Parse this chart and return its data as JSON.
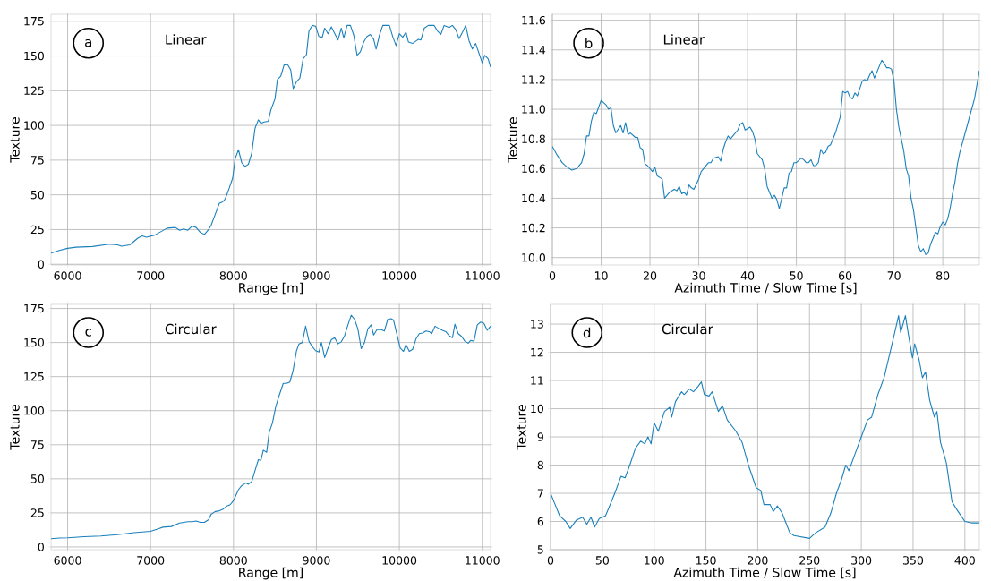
{
  "chart_data": [
    {
      "type": "line",
      "title": "Linear",
      "xlabel": "Range [m]",
      "ylabel": "Texture",
      "annotations": [
        "a"
      ],
      "color": "#1a80bb",
      "grid": true,
      "xlim": [
        5800,
        11100
      ],
      "ylim": [
        -0.5,
        180
      ],
      "xticks": [
        6000,
        7000,
        8000,
        9000,
        10000,
        11000
      ],
      "yticks": [
        0,
        25,
        50,
        75,
        100,
        125,
        150,
        175
      ],
      "x": [
        5800,
        5900,
        6000,
        6100,
        6300,
        6500,
        6600,
        6650,
        6750,
        6850,
        6900,
        6950,
        7050,
        7200,
        7300,
        7350,
        7400,
        7450,
        7500,
        7550,
        7600,
        7650,
        7700,
        7730,
        7780,
        7830,
        7870,
        7900,
        7950,
        7990,
        8020,
        8060,
        8100,
        8140,
        8180,
        8220,
        8260,
        8300,
        8330,
        8370,
        8420,
        8450,
        8500,
        8530,
        8570,
        8610,
        8650,
        8690,
        8720,
        8760,
        8800,
        8840,
        8880,
        8910,
        8950,
        8990,
        9030,
        9070,
        9100,
        9140,
        9180,
        9260,
        9300,
        9330,
        9370,
        9410,
        9450,
        9490,
        9530,
        9570,
        9610,
        9650,
        9690,
        9720,
        9760,
        9800,
        9880,
        9920,
        9960,
        10000,
        10040,
        10080,
        10110,
        10160,
        10230,
        10260,
        10300,
        10350,
        10420,
        10460,
        10500,
        10540,
        10600,
        10640,
        10680,
        10720,
        10760,
        10800,
        10840,
        10880,
        10920,
        10960,
        11000,
        11030,
        11070,
        11100
      ],
      "values": [
        8,
        10,
        11.5,
        12.3,
        12.8,
        14.5,
        14,
        13,
        14,
        19,
        20.5,
        19.5,
        21,
        26,
        26.5,
        24.5,
        25.5,
        24.5,
        27.5,
        26.5,
        23,
        21.5,
        25,
        28,
        36,
        44,
        45,
        47,
        55,
        62,
        76,
        82.5,
        73,
        70.5,
        72,
        80,
        98,
        104,
        101.5,
        102.5,
        103,
        111,
        119,
        133,
        135.5,
        143.5,
        144,
        140,
        126.5,
        131.5,
        134,
        148,
        151,
        168,
        172,
        171.5,
        164,
        163.5,
        170,
        166,
        171,
        161.5,
        170,
        163,
        172,
        172,
        165,
        150.5,
        153,
        160,
        164,
        165.5,
        162,
        155,
        165,
        172,
        172,
        164,
        157.5,
        166,
        163.5,
        167,
        160,
        159,
        162,
        161.5,
        170,
        172,
        172,
        168,
        165.5,
        172,
        170.5,
        172,
        169,
        162.5,
        167,
        172,
        161,
        155,
        159,
        152,
        145,
        150.5,
        148,
        142
      ]
    },
    {
      "type": "line",
      "title": "Linear",
      "xlabel": "Azimuth Time / Slow Time [s]",
      "ylabel": "Texture",
      "annotations": [
        "b"
      ],
      "color": "#1a80bb",
      "grid": true,
      "xlim": [
        0,
        87.5
      ],
      "ylim": [
        9.95,
        11.64
      ],
      "xticks": [
        0,
        10,
        20,
        30,
        40,
        50,
        60,
        70,
        80
      ],
      "yticks": [
        {
          "value": 10,
          "label": "10.0"
        },
        10.2,
        10.4,
        10.6,
        10.8,
        {
          "value": 11,
          "label": "11.0"
        },
        11.2,
        11.4,
        11.6
      ],
      "x": [
        0,
        1,
        2,
        3,
        4,
        5,
        6,
        6.5,
        7,
        7.5,
        8,
        8.5,
        9,
        10,
        11,
        11.5,
        12,
        12.5,
        13,
        14,
        14.5,
        15,
        15.5,
        16,
        17,
        17.5,
        18,
        18.5,
        19,
        19.5,
        20.5,
        21,
        21.5,
        22.5,
        23,
        24,
        25,
        25.5,
        26,
        26.5,
        27,
        27.5,
        28,
        28.5,
        29,
        30,
        30.5,
        31,
        32,
        32.5,
        33,
        34,
        34.5,
        35,
        35.5,
        36,
        36.5,
        37,
        38,
        38.5,
        39,
        39.5,
        40.5,
        41,
        41.5,
        42,
        43,
        43.5,
        44,
        45,
        45.5,
        46,
        46.5,
        47.5,
        48,
        48.5,
        49,
        49.5,
        50,
        51,
        51.5,
        52,
        52.5,
        53,
        53.5,
        54,
        54.5,
        55,
        55.5,
        56,
        56.5,
        57,
        58,
        59,
        59.5,
        60,
        60.5,
        61,
        61.5,
        62,
        62.5,
        63.5,
        64,
        64.5,
        65,
        65.5,
        66,
        67.5,
        68,
        68.5,
        69,
        69.5,
        70,
        70.5,
        71,
        72,
        72.5,
        73,
        73.5,
        74,
        75,
        75.5,
        76,
        76.5,
        77,
        77.5,
        78,
        78.5,
        79,
        79.5,
        80,
        80.5,
        81,
        81.5,
        82,
        82.5,
        83,
        83.5,
        85,
        86.5,
        87.5
      ],
      "values": [
        10.75,
        10.69,
        10.64,
        10.61,
        10.59,
        10.6,
        10.64,
        10.7,
        10.82,
        10.82,
        10.92,
        10.98,
        10.97,
        11.06,
        11.03,
        11.0,
        11.01,
        10.89,
        10.84,
        10.89,
        10.84,
        10.91,
        10.83,
        10.84,
        10.81,
        10.81,
        10.74,
        10.73,
        10.63,
        10.62,
        10.58,
        10.61,
        10.55,
        10.53,
        10.4,
        10.44,
        10.46,
        10.45,
        10.48,
        10.43,
        10.44,
        10.42,
        10.49,
        10.47,
        10.46,
        10.53,
        10.58,
        10.6,
        10.64,
        10.64,
        10.67,
        10.68,
        10.65,
        10.73,
        10.78,
        10.82,
        10.8,
        10.82,
        10.86,
        10.9,
        10.91,
        10.86,
        10.88,
        10.85,
        10.8,
        10.7,
        10.66,
        10.6,
        10.48,
        10.4,
        10.42,
        10.39,
        10.33,
        10.47,
        10.47,
        10.57,
        10.58,
        10.64,
        10.64,
        10.67,
        10.66,
        10.64,
        10.64,
        10.66,
        10.62,
        10.62,
        10.64,
        10.73,
        10.7,
        10.71,
        10.75,
        10.76,
        10.84,
        10.95,
        11.12,
        11.11,
        11.12,
        11.08,
        11.07,
        11.11,
        11.09,
        11.19,
        11.2,
        11.19,
        11.23,
        11.26,
        11.21,
        11.33,
        11.31,
        11.28,
        11.28,
        11.27,
        11.19,
        11.0,
        10.88,
        10.72,
        10.6,
        10.55,
        10.4,
        10.32,
        10.08,
        10.04,
        10.06,
        10.02,
        10.03,
        10.09,
        10.13,
        10.17,
        10.16,
        10.21,
        10.24,
        10.22,
        10.26,
        10.33,
        10.43,
        10.51,
        10.63,
        10.71,
        10.89,
        11.07,
        11.26
      ]
    },
    {
      "type": "line",
      "title": "Circular",
      "xlabel": "Range [m]",
      "ylabel": "Texture",
      "annotations": [
        "c"
      ],
      "color": "#1a80bb",
      "grid": true,
      "xlim": [
        5800,
        11100
      ],
      "ylim": [
        -2,
        178
      ],
      "xticks": [
        6000,
        7000,
        8000,
        9000,
        10000,
        11000
      ],
      "yticks": [
        0,
        25,
        50,
        75,
        100,
        125,
        150,
        175
      ],
      "x": [
        5800,
        5900,
        6000,
        6200,
        6400,
        6600,
        6800,
        7000,
        7050,
        7100,
        7150,
        7250,
        7350,
        7450,
        7500,
        7550,
        7600,
        7650,
        7700,
        7730,
        7780,
        7830,
        7870,
        7920,
        7960,
        8000,
        8060,
        8100,
        8150,
        8180,
        8220,
        8260,
        8300,
        8330,
        8360,
        8400,
        8430,
        8470,
        8510,
        8550,
        8600,
        8640,
        8680,
        8720,
        8760,
        8790,
        8830,
        8870,
        8910,
        8950,
        8990,
        9030,
        9060,
        9100,
        9140,
        9180,
        9220,
        9260,
        9300,
        9340,
        9380,
        9420,
        9460,
        9500,
        9540,
        9580,
        9620,
        9660,
        9690,
        9730,
        9780,
        9820,
        9860,
        9900,
        9930,
        9970,
        10010,
        10050,
        10080,
        10120,
        10160,
        10200,
        10240,
        10280,
        10320,
        10360,
        10390,
        10430,
        10470,
        10520,
        10560,
        10600,
        10640,
        10670,
        10710,
        10750,
        10790,
        10830,
        10860,
        10900,
        10940,
        10980,
        11020,
        11060,
        11100
      ],
      "values": [
        6,
        6.5,
        6.7,
        7.5,
        8,
        9,
        10.5,
        11.5,
        12.5,
        13.5,
        14.5,
        15,
        17.5,
        18.5,
        18.5,
        19,
        18,
        18,
        20,
        24,
        26,
        26.5,
        27.5,
        30,
        31,
        34,
        42,
        45,
        47,
        46,
        48,
        56,
        64,
        63.5,
        71,
        69.5,
        84,
        91,
        103,
        111,
        120,
        120,
        121,
        130,
        144,
        149,
        150,
        162,
        151,
        147,
        144,
        143,
        150,
        139,
        146,
        152,
        153.5,
        149,
        150.5,
        155,
        163,
        170,
        167,
        160,
        145.5,
        150,
        160,
        163,
        155.5,
        159.5,
        159.5,
        158.5,
        167,
        167.5,
        166.5,
        156,
        146,
        143.5,
        148.5,
        143.5,
        145,
        152.5,
        156.5,
        157,
        158.5,
        158,
        156.5,
        162,
        160.5,
        159,
        158,
        155,
        153.5,
        163.5,
        156.5,
        154.5,
        151,
        149.5,
        151.5,
        151,
        163,
        165,
        164,
        159,
        162
      ]
    },
    {
      "type": "line",
      "title": "Circular",
      "xlabel": "Azimuth Time / Slow Time [s]",
      "ylabel": "Texture",
      "annotations": [
        "d"
      ],
      "color": "#1a80bb",
      "grid": true,
      "xlim": [
        0,
        414
      ],
      "ylim": [
        5,
        13.7
      ],
      "xticks": [
        0,
        50,
        100,
        150,
        200,
        250,
        300,
        350,
        400
      ],
      "yticks": [
        5,
        6,
        7,
        8,
        9,
        10,
        11,
        12,
        13
      ],
      "x": [
        0,
        4.4,
        8.8,
        14.7,
        19,
        25,
        31,
        35,
        39,
        42.6,
        47,
        53,
        57,
        62,
        68,
        72,
        76.5,
        82,
        87,
        91,
        94,
        97,
        100,
        104,
        110,
        115,
        117,
        120.6,
        126.5,
        129,
        134,
        138,
        142.6,
        145.6,
        148.5,
        153,
        156,
        162,
        166,
        170.6,
        179,
        185,
        191,
        198.5,
        203,
        206,
        212,
        215,
        219,
        223.5,
        231,
        235,
        250,
        256,
        265,
        270.6,
        276,
        281,
        285,
        288,
        294,
        300,
        306,
        310,
        316,
        322,
        326.5,
        331,
        336,
        338,
        342.6,
        345.6,
        349.4,
        351.5,
        356,
        359,
        362,
        366,
        370.6,
        373,
        376.5,
        382,
        387.6,
        392.6,
        400,
        406,
        414
      ],
      "values": [
        7.0,
        6.6,
        6.2,
        6.0,
        5.75,
        6.05,
        6.15,
        5.9,
        6.15,
        5.8,
        6.1,
        6.2,
        6.55,
        7.0,
        7.6,
        7.55,
        8.0,
        8.6,
        8.85,
        8.75,
        9.0,
        8.75,
        9.5,
        9.2,
        9.9,
        10.05,
        9.7,
        10.25,
        10.6,
        10.5,
        10.7,
        10.6,
        10.8,
        10.95,
        10.5,
        10.45,
        10.6,
        9.9,
        10.1,
        9.6,
        9.2,
        8.8,
        8.0,
        7.2,
        7.1,
        6.6,
        6.6,
        6.35,
        6.55,
        6.3,
        5.6,
        5.5,
        5.4,
        5.6,
        5.8,
        6.3,
        7.0,
        7.5,
        8.0,
        7.8,
        8.4,
        9.0,
        9.6,
        9.7,
        10.5,
        11.1,
        11.8,
        12.5,
        13.3,
        12.7,
        13.3,
        12.6,
        11.8,
        12.3,
        11.7,
        11.1,
        11.3,
        10.3,
        9.7,
        9.9,
        8.8,
        8.1,
        6.7,
        6.4,
        6.0,
        5.95,
        5.95
      ]
    }
  ]
}
